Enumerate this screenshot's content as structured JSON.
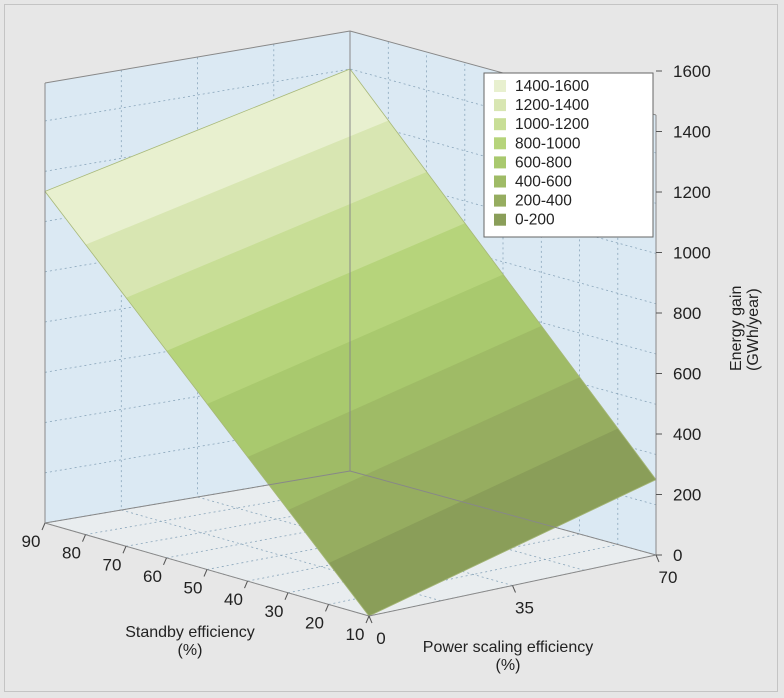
{
  "colors": {
    "background": "#e7e7e7",
    "wall": "#dbe9f3",
    "grid": "#8aa6bb",
    "frame": "#888888"
  },
  "chart_data": {
    "type": "surface3d",
    "title": "",
    "z_axis": {
      "label_line1": "Energy gain",
      "label_line2": "(GWh/year)",
      "ticks": [
        "0",
        "200",
        "400",
        "600",
        "800",
        "1000",
        "1200",
        "1400",
        "1600"
      ],
      "range": [
        0,
        1600
      ]
    },
    "x_axis": {
      "label_line1": "Standby efficiency",
      "label_line2": "(%)",
      "ticks": [
        "10",
        "20",
        "30",
        "40",
        "50",
        "60",
        "70",
        "80",
        "90"
      ],
      "range": [
        10,
        90
      ]
    },
    "y_axis": {
      "label_line1": "Power scaling efficiency",
      "label_line2": "(%)",
      "ticks": [
        "0",
        "35",
        "70"
      ],
      "range": [
        0,
        70
      ]
    },
    "surface_corners": [
      {
        "standby": 10,
        "power_scaling": 0,
        "energy": 0
      },
      {
        "standby": 90,
        "power_scaling": 0,
        "energy": 1320
      },
      {
        "standby": 90,
        "power_scaling": 70,
        "energy": 1600
      },
      {
        "standby": 10,
        "power_scaling": 70,
        "energy": 300
      }
    ],
    "legend": {
      "position": "top-right",
      "bands": [
        {
          "label": "1400-1600",
          "color": "#e8f0cf"
        },
        {
          "label": "1200-1400",
          "color": "#d8e6b2"
        },
        {
          "label": "1000-1200",
          "color": "#c8de96"
        },
        {
          "label": "800-1000",
          "color": "#b6d47b"
        },
        {
          "label": "600-800",
          "color": "#a9c96e"
        },
        {
          "label": "400-600",
          "color": "#9fbb66"
        },
        {
          "label": "200-400",
          "color": "#96ad60"
        },
        {
          "label": "0-200",
          "color": "#8a9e59"
        }
      ]
    }
  }
}
